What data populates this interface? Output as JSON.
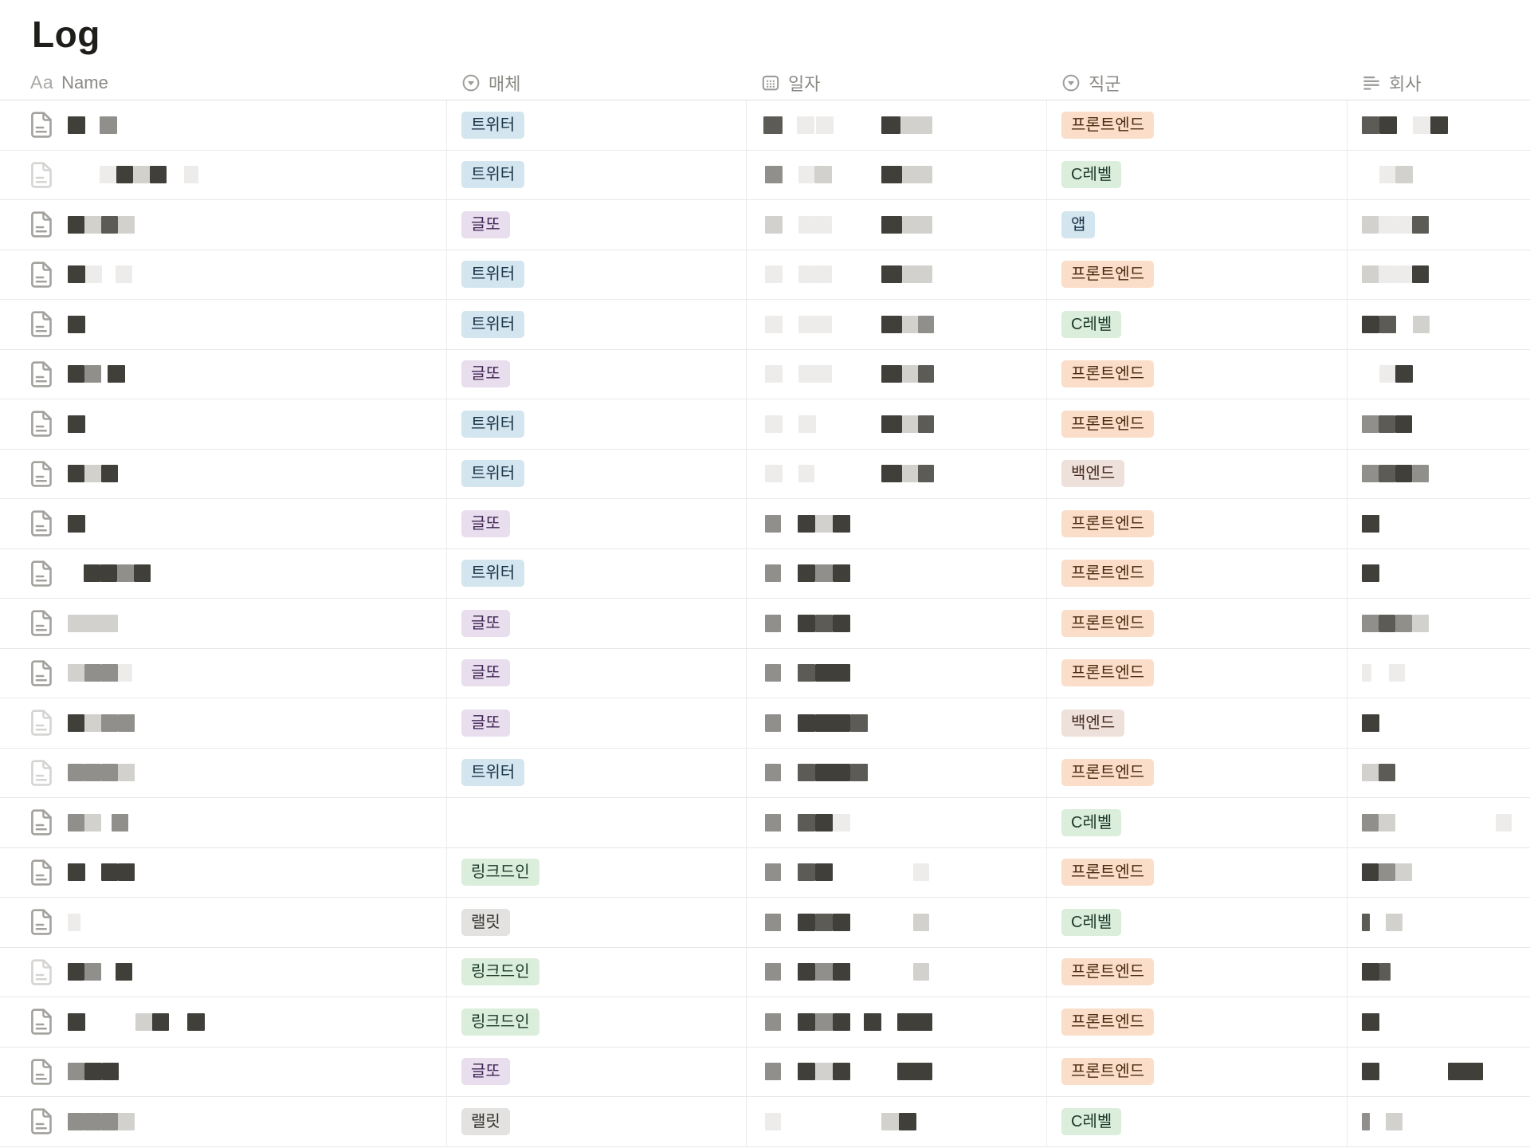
{
  "page": {
    "title": "Log"
  },
  "table": {
    "columns": [
      {
        "key": "name",
        "label": "Name",
        "icon": "title-icon"
      },
      {
        "key": "media",
        "label": "매체",
        "icon": "select-icon"
      },
      {
        "key": "date",
        "label": "일자",
        "icon": "calendar-icon"
      },
      {
        "key": "job",
        "label": "직군",
        "icon": "select-icon"
      },
      {
        "key": "company",
        "label": "회사",
        "icon": "text-lines-icon"
      }
    ],
    "tag_colors": {
      "트위터": {
        "bg": "#d3e5ef",
        "fg": "#183347"
      },
      "글또": {
        "bg": "#e8deee",
        "fg": "#412454"
      },
      "링크드인": {
        "bg": "#dbeddb",
        "fg": "#1c3829"
      },
      "랠릿": {
        "bg": "#e3e2e0",
        "fg": "#32302c"
      },
      "프론트엔드": {
        "bg": "#fadec9",
        "fg": "#49290e"
      },
      "C레벨": {
        "bg": "#dbeddb",
        "fg": "#1c3829"
      },
      "앱": {
        "bg": "#d3e5ef",
        "fg": "#183347"
      },
      "백엔드": {
        "bg": "#eee0da",
        "fg": "#442a1e"
      }
    },
    "redaction_palette": {
      "d": "#413f3a",
      "e": "#5d5b55",
      "m": "#918f8b",
      "l": "#d3d1ce",
      "f": "#edecea"
    },
    "rows": [
      {
        "media": "트위터",
        "job": "프론트엔드",
        "name": [
          [
            0,
            22,
            "d"
          ],
          [
            40,
            22,
            "m"
          ]
        ],
        "date": [
          [
            0,
            24,
            "e"
          ],
          [
            42,
            22,
            "f"
          ],
          [
            66,
            22,
            "f"
          ],
          [
            148,
            24,
            "d"
          ],
          [
            172,
            40,
            "l"
          ]
        ],
        "company": [
          [
            0,
            22,
            "e"
          ],
          [
            22,
            22,
            "d"
          ],
          [
            64,
            22,
            "f"
          ],
          [
            86,
            22,
            "d"
          ]
        ]
      },
      {
        "media": "트위터",
        "job": "C레벨",
        "faded": true,
        "name": [
          [
            40,
            21,
            "f"
          ],
          [
            61,
            21,
            "d"
          ],
          [
            82,
            21,
            "l"
          ],
          [
            103,
            21,
            "d"
          ],
          [
            146,
            18,
            "f"
          ]
        ],
        "date": [
          [
            2,
            22,
            "m"
          ],
          [
            44,
            20,
            "f"
          ],
          [
            64,
            22,
            "l"
          ],
          [
            148,
            26,
            "d"
          ],
          [
            174,
            38,
            "l"
          ]
        ],
        "company": [
          [
            22,
            20,
            "f"
          ],
          [
            42,
            22,
            "l"
          ]
        ]
      },
      {
        "media": "글또",
        "job": "앱",
        "name": [
          [
            0,
            21,
            "d"
          ],
          [
            21,
            21,
            "l"
          ],
          [
            42,
            21,
            "e"
          ],
          [
            63,
            21,
            "l"
          ]
        ],
        "date": [
          [
            2,
            22,
            "l"
          ],
          [
            44,
            20,
            "f"
          ],
          [
            64,
            22,
            "f"
          ],
          [
            148,
            26,
            "d"
          ],
          [
            174,
            38,
            "l"
          ]
        ],
        "company": [
          [
            0,
            21,
            "l"
          ],
          [
            21,
            21,
            "f"
          ],
          [
            42,
            21,
            "f"
          ],
          [
            63,
            21,
            "e"
          ]
        ]
      },
      {
        "media": "트위터",
        "job": "프론트엔드",
        "name": [
          [
            0,
            22,
            "d"
          ],
          [
            22,
            21,
            "f"
          ],
          [
            60,
            21,
            "f"
          ]
        ],
        "date": [
          [
            2,
            22,
            "f"
          ],
          [
            44,
            20,
            "f"
          ],
          [
            64,
            22,
            "f"
          ],
          [
            148,
            26,
            "d"
          ],
          [
            174,
            38,
            "l"
          ]
        ],
        "company": [
          [
            0,
            21,
            "l"
          ],
          [
            21,
            21,
            "f"
          ],
          [
            42,
            21,
            "f"
          ],
          [
            63,
            21,
            "d"
          ]
        ]
      },
      {
        "media": "트위터",
        "job": "C레벨",
        "name": [
          [
            0,
            22,
            "d"
          ]
        ],
        "date": [
          [
            2,
            22,
            "f"
          ],
          [
            44,
            42,
            "f"
          ],
          [
            148,
            26,
            "d"
          ],
          [
            174,
            20,
            "l"
          ],
          [
            194,
            20,
            "m"
          ]
        ],
        "company": [
          [
            0,
            22,
            "d"
          ],
          [
            22,
            21,
            "e"
          ],
          [
            64,
            21,
            "l"
          ]
        ]
      },
      {
        "media": "글또",
        "job": "프론트엔드",
        "name": [
          [
            0,
            21,
            "d"
          ],
          [
            21,
            21,
            "m"
          ],
          [
            50,
            22,
            "d"
          ]
        ],
        "date": [
          [
            2,
            22,
            "f"
          ],
          [
            44,
            42,
            "f"
          ],
          [
            148,
            26,
            "d"
          ],
          [
            174,
            20,
            "l"
          ],
          [
            194,
            20,
            "e"
          ]
        ],
        "company": [
          [
            22,
            20,
            "f"
          ],
          [
            42,
            22,
            "d"
          ]
        ]
      },
      {
        "media": "트위터",
        "job": "프론트엔드",
        "name": [
          [
            0,
            22,
            "d"
          ]
        ],
        "date": [
          [
            2,
            22,
            "f"
          ],
          [
            44,
            22,
            "f"
          ],
          [
            148,
            26,
            "d"
          ],
          [
            174,
            20,
            "l"
          ],
          [
            194,
            20,
            "e"
          ]
        ],
        "company": [
          [
            0,
            21,
            "m"
          ],
          [
            21,
            21,
            "e"
          ],
          [
            42,
            21,
            "d"
          ]
        ]
      },
      {
        "media": "트위터",
        "job": "백엔드",
        "name": [
          [
            0,
            21,
            "d"
          ],
          [
            21,
            21,
            "l"
          ],
          [
            42,
            21,
            "d"
          ]
        ],
        "date": [
          [
            2,
            22,
            "f"
          ],
          [
            44,
            20,
            "f"
          ],
          [
            148,
            26,
            "d"
          ],
          [
            174,
            20,
            "l"
          ],
          [
            194,
            20,
            "e"
          ]
        ],
        "company": [
          [
            0,
            21,
            "m"
          ],
          [
            21,
            21,
            "e"
          ],
          [
            42,
            21,
            "d"
          ],
          [
            63,
            21,
            "m"
          ]
        ]
      },
      {
        "media": "글또",
        "job": "프론트엔드",
        "name": [
          [
            0,
            22,
            "d"
          ]
        ],
        "date": [
          [
            2,
            20,
            "m"
          ],
          [
            43,
            22,
            "d"
          ],
          [
            65,
            22,
            "l"
          ],
          [
            87,
            22,
            "d"
          ]
        ],
        "company": [
          [
            0,
            22,
            "d"
          ]
        ]
      },
      {
        "media": "트위터",
        "job": "프론트엔드",
        "name": [
          [
            20,
            21,
            "d"
          ],
          [
            41,
            21,
            "d"
          ],
          [
            62,
            21,
            "m"
          ],
          [
            83,
            21,
            "d"
          ]
        ],
        "date": [
          [
            2,
            20,
            "m"
          ],
          [
            43,
            22,
            "d"
          ],
          [
            65,
            22,
            "m"
          ],
          [
            87,
            22,
            "d"
          ]
        ],
        "company": [
          [
            0,
            22,
            "d"
          ]
        ]
      },
      {
        "media": "글또",
        "job": "프론트엔드",
        "name": [
          [
            0,
            21,
            "l"
          ],
          [
            21,
            21,
            "l"
          ],
          [
            42,
            21,
            "l"
          ]
        ],
        "date": [
          [
            2,
            20,
            "m"
          ],
          [
            43,
            22,
            "d"
          ],
          [
            65,
            22,
            "e"
          ],
          [
            87,
            22,
            "d"
          ]
        ],
        "company": [
          [
            0,
            21,
            "m"
          ],
          [
            21,
            21,
            "e"
          ],
          [
            42,
            21,
            "m"
          ],
          [
            63,
            21,
            "l"
          ]
        ]
      },
      {
        "media": "글또",
        "job": "프론트엔드",
        "name": [
          [
            0,
            21,
            "l"
          ],
          [
            21,
            21,
            "m"
          ],
          [
            42,
            21,
            "m"
          ],
          [
            63,
            18,
            "f"
          ]
        ],
        "date": [
          [
            2,
            20,
            "m"
          ],
          [
            43,
            22,
            "e"
          ],
          [
            65,
            44,
            "d"
          ]
        ],
        "company": [
          [
            0,
            12,
            "f"
          ],
          [
            34,
            20,
            "f"
          ]
        ]
      },
      {
        "media": "글또",
        "job": "백엔드",
        "faded": true,
        "name": [
          [
            0,
            21,
            "d"
          ],
          [
            21,
            21,
            "l"
          ],
          [
            42,
            21,
            "m"
          ],
          [
            63,
            21,
            "m"
          ]
        ],
        "date": [
          [
            2,
            20,
            "m"
          ],
          [
            43,
            22,
            "d"
          ],
          [
            65,
            44,
            "d"
          ],
          [
            109,
            22,
            "e"
          ]
        ],
        "company": [
          [
            0,
            22,
            "d"
          ]
        ]
      },
      {
        "media": "트위터",
        "job": "프론트엔드",
        "faded": true,
        "name": [
          [
            0,
            21,
            "m"
          ],
          [
            21,
            21,
            "m"
          ],
          [
            42,
            21,
            "m"
          ],
          [
            63,
            21,
            "l"
          ]
        ],
        "date": [
          [
            2,
            20,
            "m"
          ],
          [
            43,
            22,
            "e"
          ],
          [
            65,
            44,
            "d"
          ],
          [
            109,
            22,
            "e"
          ]
        ],
        "company": [
          [
            0,
            21,
            "l"
          ],
          [
            21,
            21,
            "e"
          ]
        ]
      },
      {
        "media": null,
        "job": "C레벨",
        "name": [
          [
            0,
            21,
            "m"
          ],
          [
            21,
            21,
            "l"
          ],
          [
            55,
            21,
            "m"
          ]
        ],
        "date": [
          [
            2,
            20,
            "m"
          ],
          [
            43,
            22,
            "e"
          ],
          [
            65,
            22,
            "d"
          ],
          [
            87,
            22,
            "f"
          ]
        ],
        "company": [
          [
            0,
            21,
            "m"
          ],
          [
            21,
            21,
            "l"
          ],
          [
            168,
            20,
            "f"
          ]
        ]
      },
      {
        "media": "링크드인",
        "job": "프론트엔드",
        "name": [
          [
            0,
            22,
            "d"
          ],
          [
            42,
            21,
            "d"
          ],
          [
            63,
            21,
            "d"
          ]
        ],
        "date": [
          [
            2,
            20,
            "m"
          ],
          [
            43,
            22,
            "e"
          ],
          [
            65,
            22,
            "d"
          ],
          [
            188,
            20,
            "f"
          ]
        ],
        "company": [
          [
            0,
            21,
            "d"
          ],
          [
            21,
            21,
            "m"
          ],
          [
            42,
            21,
            "l"
          ]
        ]
      },
      {
        "media": "랠릿",
        "job": "C레벨",
        "name": [
          [
            0,
            16,
            "f"
          ]
        ],
        "date": [
          [
            2,
            20,
            "m"
          ],
          [
            43,
            22,
            "d"
          ],
          [
            65,
            22,
            "e"
          ],
          [
            87,
            22,
            "d"
          ],
          [
            188,
            20,
            "l"
          ]
        ],
        "company": [
          [
            0,
            10,
            "e"
          ],
          [
            30,
            21,
            "l"
          ]
        ]
      },
      {
        "media": "링크드인",
        "job": "프론트엔드",
        "faded": true,
        "name": [
          [
            0,
            21,
            "d"
          ],
          [
            21,
            21,
            "m"
          ],
          [
            60,
            21,
            "d"
          ]
        ],
        "date": [
          [
            2,
            20,
            "m"
          ],
          [
            43,
            22,
            "d"
          ],
          [
            65,
            22,
            "m"
          ],
          [
            87,
            22,
            "d"
          ],
          [
            188,
            20,
            "l"
          ]
        ],
        "company": [
          [
            0,
            22,
            "d"
          ],
          [
            22,
            14,
            "e"
          ]
        ]
      },
      {
        "media": "링크드인",
        "job": "프론트엔드",
        "name": [
          [
            0,
            22,
            "d"
          ],
          [
            85,
            21,
            "l"
          ],
          [
            106,
            21,
            "d"
          ],
          [
            150,
            22,
            "d"
          ]
        ],
        "date": [
          [
            2,
            20,
            "m"
          ],
          [
            43,
            22,
            "d"
          ],
          [
            65,
            22,
            "m"
          ],
          [
            87,
            22,
            "d"
          ],
          [
            126,
            22,
            "d"
          ],
          [
            168,
            44,
            "d"
          ]
        ],
        "company": [
          [
            0,
            22,
            "d"
          ]
        ]
      },
      {
        "media": "글또",
        "job": "프론트엔드",
        "name": [
          [
            0,
            21,
            "m"
          ],
          [
            21,
            22,
            "d"
          ],
          [
            43,
            21,
            "d"
          ]
        ],
        "date": [
          [
            2,
            20,
            "m"
          ],
          [
            43,
            22,
            "d"
          ],
          [
            65,
            22,
            "l"
          ],
          [
            87,
            22,
            "d"
          ],
          [
            168,
            44,
            "d"
          ]
        ],
        "company": [
          [
            0,
            22,
            "d"
          ],
          [
            108,
            44,
            "d"
          ]
        ]
      },
      {
        "media": "랠릿",
        "job": "C레벨",
        "name": [
          [
            0,
            21,
            "m"
          ],
          [
            21,
            21,
            "m"
          ],
          [
            42,
            21,
            "m"
          ],
          [
            63,
            21,
            "l"
          ]
        ],
        "date": [
          [
            2,
            20,
            "f"
          ],
          [
            148,
            22,
            "l"
          ],
          [
            170,
            22,
            "d"
          ]
        ],
        "company": [
          [
            0,
            10,
            "m"
          ],
          [
            30,
            21,
            "l"
          ]
        ]
      }
    ]
  }
}
